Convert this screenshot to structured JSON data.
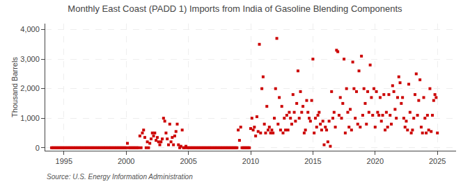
{
  "chart_data": {
    "type": "scatter",
    "title": "Monthly East Coast (PADD 1) Imports from India of Gasoline Blending Components",
    "ylabel": "Thousand Barrels",
    "source": "Source: U.S. Energy Information Administration",
    "color": "#cc0000",
    "marker": "square",
    "grid": true,
    "xlim": [
      1993.5,
      2026.5
    ],
    "xticks": [
      1995,
      2000,
      2005,
      2010,
      2015,
      2020,
      2025
    ],
    "ylim": [
      -100,
      4200
    ],
    "yticks": [
      0,
      {
        "value": 1000,
        "label": "1,000"
      },
      {
        "value": 2000,
        "label": "2,000"
      },
      {
        "value": 3000,
        "label": "3,000"
      },
      {
        "value": 4000,
        "label": "4,000"
      }
    ],
    "x": [
      1994.0,
      1994.1,
      1994.2,
      1994.3,
      1994.4,
      1994.5,
      1994.6,
      1994.7,
      1994.8,
      1994.9,
      1995.0,
      1995.1,
      1995.2,
      1995.3,
      1995.4,
      1995.5,
      1995.6,
      1995.7,
      1995.8,
      1995.9,
      1996.0,
      1996.1,
      1996.2,
      1996.3,
      1996.4,
      1996.5,
      1996.6,
      1996.7,
      1996.8,
      1996.9,
      1997.0,
      1997.1,
      1997.2,
      1997.3,
      1997.4,
      1997.5,
      1997.6,
      1997.7,
      1997.8,
      1997.9,
      1998.0,
      1998.1,
      1998.2,
      1998.3,
      1998.4,
      1998.5,
      1998.6,
      1998.7,
      1998.8,
      1998.9,
      1999.0,
      1999.1,
      1999.2,
      1999.3,
      1999.4,
      1999.5,
      1999.6,
      1999.7,
      1999.8,
      1999.9,
      2000.0,
      2000.1,
      2000.2,
      2000.3,
      2000.4,
      2000.5,
      2000.6,
      2000.7,
      2000.8,
      2000.9,
      2001.0,
      2001.1,
      2001.2,
      2001.3,
      2001.4,
      2001.5,
      2001.6,
      2001.7,
      2001.8,
      2001.9,
      2002.0,
      2002.1,
      2002.2,
      2002.3,
      2002.4,
      2002.5,
      2002.6,
      2002.7,
      2002.8,
      2002.9,
      2003.0,
      2003.1,
      2003.2,
      2003.3,
      2003.4,
      2003.5,
      2003.6,
      2003.7,
      2003.8,
      2003.9,
      2004.0,
      2004.1,
      2004.2,
      2004.3,
      2004.4,
      2004.5,
      2004.6,
      2004.7,
      2004.8,
      2004.9,
      2005.0,
      2005.1,
      2005.2,
      2005.3,
      2005.4,
      2005.5,
      2005.6,
      2005.7,
      2005.8,
      2005.9,
      2006.0,
      2006.1,
      2006.2,
      2006.3,
      2006.4,
      2006.5,
      2006.6,
      2006.7,
      2006.8,
      2006.9,
      2007.0,
      2007.1,
      2007.2,
      2007.3,
      2007.4,
      2007.5,
      2007.6,
      2007.7,
      2007.8,
      2007.9,
      2008.0,
      2008.1,
      2008.2,
      2008.3,
      2008.4,
      2008.5,
      2008.6,
      2008.7,
      2008.8,
      2008.9,
      2009.0,
      2009.1,
      2009.2,
      2009.3,
      2009.4,
      2009.5,
      2009.6,
      2009.7,
      2009.8,
      2009.9,
      2010.0,
      2010.1,
      2010.2,
      2010.3,
      2010.4,
      2010.5,
      2010.6,
      2010.7,
      2010.8,
      2010.9,
      2011.0,
      2011.1,
      2011.2,
      2011.3,
      2011.4,
      2011.5,
      2011.6,
      2011.7,
      2011.8,
      2011.9,
      2012.0,
      2012.1,
      2012.2,
      2012.3,
      2012.4,
      2012.5,
      2012.6,
      2012.7,
      2012.8,
      2012.9,
      2013.0,
      2013.1,
      2013.2,
      2013.3,
      2013.4,
      2013.5,
      2013.6,
      2013.7,
      2013.8,
      2013.9,
      2014.0,
      2014.1,
      2014.2,
      2014.3,
      2014.4,
      2014.5,
      2014.6,
      2014.7,
      2014.8,
      2014.9,
      2015.0,
      2015.1,
      2015.2,
      2015.3,
      2015.4,
      2015.5,
      2015.6,
      2015.7,
      2015.8,
      2015.9,
      2016.0,
      2016.1,
      2016.2,
      2016.3,
      2016.4,
      2016.5,
      2016.6,
      2016.7,
      2016.8,
      2016.9,
      2017.0,
      2017.1,
      2017.2,
      2017.3,
      2017.4,
      2017.5,
      2017.6,
      2017.7,
      2017.8,
      2017.9,
      2018.0,
      2018.1,
      2018.2,
      2018.3,
      2018.4,
      2018.5,
      2018.6,
      2018.7,
      2018.8,
      2018.9,
      2019.0,
      2019.1,
      2019.2,
      2019.3,
      2019.4,
      2019.5,
      2019.6,
      2019.7,
      2019.8,
      2019.9,
      2020.0,
      2020.1,
      2020.2,
      2020.3,
      2020.4,
      2020.5,
      2020.6,
      2020.7,
      2020.8,
      2020.9,
      2021.0,
      2021.1,
      2021.2,
      2021.3,
      2021.4,
      2021.5,
      2021.6,
      2021.7,
      2021.8,
      2021.9,
      2022.0,
      2022.1,
      2022.2,
      2022.3,
      2022.4,
      2022.5,
      2022.6,
      2022.7,
      2022.8,
      2022.9,
      2023.0,
      2023.1,
      2023.2,
      2023.3,
      2023.4,
      2023.5,
      2023.6,
      2023.7,
      2023.8,
      2023.9,
      2024.0,
      2024.1,
      2024.2,
      2024.3,
      2024.4,
      2024.5,
      2024.6,
      2024.7,
      2024.8,
      2024.9,
      2025.0
    ],
    "values": [
      0,
      0,
      0,
      0,
      0,
      0,
      0,
      0,
      0,
      0,
      0,
      0,
      0,
      0,
      0,
      0,
      0,
      0,
      0,
      0,
      0,
      0,
      0,
      0,
      0,
      0,
      0,
      0,
      0,
      0,
      0,
      0,
      0,
      0,
      0,
      0,
      0,
      0,
      0,
      0,
      0,
      0,
      0,
      0,
      0,
      0,
      0,
      0,
      0,
      0,
      0,
      0,
      0,
      0,
      0,
      0,
      0,
      0,
      0,
      0,
      0,
      150,
      0,
      0,
      0,
      0,
      0,
      0,
      0,
      0,
      0,
      400,
      0,
      500,
      600,
      350,
      0,
      200,
      0,
      150,
      300,
      500,
      400,
      500,
      250,
      350,
      200,
      100,
      200,
      300,
      1000,
      900,
      500,
      300,
      100,
      800,
      200,
      350,
      100,
      400,
      550,
      800,
      100,
      0,
      50,
      600,
      0,
      0,
      50,
      0,
      0,
      0,
      0,
      0,
      0,
      0,
      0,
      0,
      0,
      0,
      0,
      0,
      0,
      0,
      0,
      0,
      0,
      0,
      0,
      0,
      0,
      0,
      0,
      0,
      0,
      0,
      0,
      0,
      0,
      0,
      0,
      0,
      0,
      0,
      0,
      0,
      0,
      0,
      0,
      0,
      600,
      250,
      700,
      0,
      0,
      0,
      0,
      0,
      0,
      0,
      650,
      1000,
      600,
      700,
      400,
      1050,
      550,
      3500,
      500,
      2000,
      2400,
      800,
      500,
      1400,
      600,
      700,
      500,
      600,
      500,
      1000,
      2000,
      3700,
      800,
      1700,
      600,
      1400,
      500,
      1000,
      600,
      1100,
      600,
      1200,
      1000,
      800,
      1800,
      1200,
      900,
      1500,
      2600,
      1000,
      1900,
      1200,
      1400,
      500,
      600,
      1600,
      1200,
      1000,
      900,
      1600,
      3000,
      500,
      1000,
      700,
      1100,
      1200,
      800,
      600,
      900,
      100,
      700,
      600,
      200,
      900,
      50,
      1900,
      1000,
      1200,
      700,
      3300,
      3250,
      1100,
      1700,
      1000,
      1500,
      3000,
      500,
      2000,
      1200,
      700,
      1300,
      600,
      2900,
      2000,
      1000,
      1900,
      800,
      2600,
      700,
      3100,
      1100,
      2000,
      1500,
      800,
      1900,
      1200,
      2800,
      1700,
      1100,
      2000,
      700,
      1900,
      1200,
      1100,
      1700,
      900,
      1100,
      1800,
      600,
      1200,
      700,
      1800,
      1100,
      800,
      2100,
      1900,
      1300,
      1000,
      1700,
      2400,
      2200,
      1500,
      1700,
      1000,
      700,
      900,
      600,
      2150,
      1200,
      500,
      600,
      1000,
      1800,
      2500,
      1100,
      1600,
      2300,
      700,
      500,
      1700,
      1000,
      500,
      1100,
      600,
      2000,
      550,
      1100,
      1600,
      1800,
      1700,
      500
    ]
  }
}
